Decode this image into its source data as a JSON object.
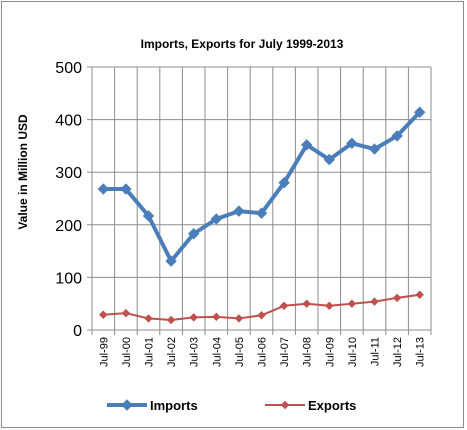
{
  "chart_data": {
    "type": "line",
    "title": "Imports, Exports for July 1999-2013",
    "xlabel": "",
    "ylabel": "Value in  Million USD",
    "categories": [
      "Jul-99",
      "Jul-00",
      "Jul-01",
      "Jul-02",
      "Jul-03",
      "Jul-04",
      "Jul-05",
      "Jul-06",
      "Jul-07",
      "Jul-08",
      "Jul-09",
      "Jul-10",
      "Jul-11",
      "Jul-12",
      "Jul-13"
    ],
    "ylim": [
      0,
      500
    ],
    "yticks": [
      "0",
      "100",
      "200",
      "300",
      "400",
      "500"
    ],
    "grid": true,
    "legend_position": "bottom",
    "series": [
      {
        "name": "Imports",
        "color": "#4a7ebb",
        "marker": "diamond",
        "values": [
          268,
          268,
          217,
          131,
          183,
          211,
          226,
          222,
          280,
          352,
          324,
          355,
          344,
          369,
          414
        ]
      },
      {
        "name": "Exports",
        "color": "#c0504d",
        "marker": "diamond",
        "values": [
          29,
          32,
          22,
          19,
          24,
          25,
          22,
          28,
          46,
          50,
          46,
          50,
          54,
          61,
          67
        ]
      }
    ]
  }
}
